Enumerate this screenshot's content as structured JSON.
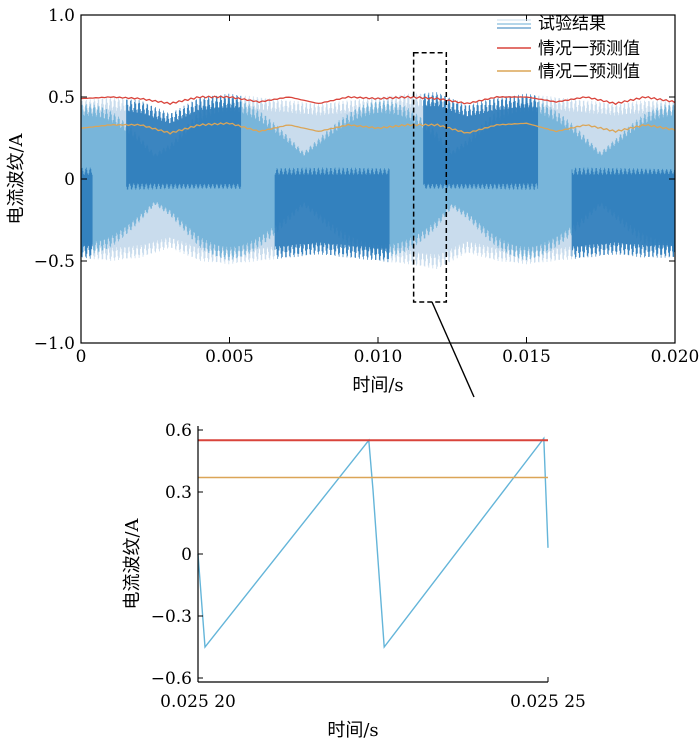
{
  "colors": {
    "experiment_light": "#c9dced",
    "experiment_mid": "#6aaed6",
    "experiment_dark": "#2b7bba",
    "case1": "#d9443b",
    "case2": "#dba557",
    "zoom_wave": "#64b5d9",
    "axis": "#000000"
  },
  "chart_data": [
    {
      "type": "line",
      "title": "",
      "xlabel": "时间/s",
      "ylabel": "电流波纹/A",
      "xlim": [
        0,
        0.02
      ],
      "ylim": [
        -1.0,
        1.0
      ],
      "xticks": [
        0,
        0.005,
        0.01,
        0.015,
        0.02
      ],
      "xtick_labels": [
        "0",
        "0.005",
        "0.010",
        "0.015",
        "0.020"
      ],
      "yticks": [
        -1.0,
        -0.5,
        0,
        0.5,
        1.0
      ],
      "ytick_labels": [
        "−1.0",
        "−0.5",
        "0",
        "0.5",
        "1.0"
      ],
      "legend_position": "top-right",
      "legend": [
        "试验结果",
        "情况一预测值",
        "情况二预测值"
      ],
      "series": [
        {
          "name": "试验结果",
          "description_values": "high-frequency triangular ripple",
          "x": [
            0,
            0.001,
            0.002,
            0.003,
            0.004,
            0.005,
            0.006,
            0.007,
            0.008,
            0.009,
            0.01,
            0.011,
            0.012,
            0.013,
            0.014,
            0.015,
            0.016,
            0.017,
            0.018,
            0.019,
            0.02
          ],
          "envelope_upper": [
            0.48,
            0.5,
            0.48,
            0.4,
            0.5,
            0.52,
            0.5,
            0.48,
            0.46,
            0.48,
            0.5,
            0.52,
            0.53,
            0.45,
            0.5,
            0.52,
            0.5,
            0.48,
            0.46,
            0.48,
            0.48
          ],
          "envelope_lower": [
            -0.48,
            -0.5,
            -0.48,
            -0.42,
            -0.5,
            -0.52,
            -0.5,
            -0.48,
            -0.46,
            -0.48,
            -0.5,
            -0.52,
            -0.55,
            -0.45,
            -0.5,
            -0.52,
            -0.5,
            -0.48,
            -0.46,
            -0.48,
            -0.48
          ]
        },
        {
          "name": "情况一预测值",
          "x": [
            0,
            0.001,
            0.002,
            0.003,
            0.004,
            0.005,
            0.006,
            0.007,
            0.008,
            0.009,
            0.01,
            0.011,
            0.012,
            0.013,
            0.014,
            0.015,
            0.016,
            0.017,
            0.018,
            0.019,
            0.02
          ],
          "values": [
            0.49,
            0.5,
            0.49,
            0.46,
            0.5,
            0.5,
            0.47,
            0.5,
            0.46,
            0.5,
            0.49,
            0.5,
            0.49,
            0.46,
            0.5,
            0.5,
            0.47,
            0.5,
            0.46,
            0.5,
            0.47
          ]
        },
        {
          "name": "情况二预测值",
          "x": [
            0,
            0.001,
            0.002,
            0.003,
            0.004,
            0.005,
            0.006,
            0.007,
            0.008,
            0.009,
            0.01,
            0.011,
            0.012,
            0.013,
            0.014,
            0.015,
            0.016,
            0.017,
            0.018,
            0.019,
            0.02
          ],
          "values": [
            0.31,
            0.33,
            0.33,
            0.28,
            0.33,
            0.34,
            0.29,
            0.33,
            0.29,
            0.33,
            0.31,
            0.33,
            0.33,
            0.28,
            0.33,
            0.34,
            0.29,
            0.33,
            0.29,
            0.33,
            0.3
          ]
        }
      ],
      "zoom_box": {
        "xlim": [
          0.0112,
          0.0123
        ],
        "ylim": [
          -0.75,
          0.77
        ]
      }
    },
    {
      "type": "line",
      "title": "",
      "xlabel": "时间/s",
      "ylabel": "电流波纹/A",
      "xlim": [
        0.0252,
        0.02525
      ],
      "ylim": [
        -0.6,
        0.6
      ],
      "xticks": [
        0.0252,
        0.02525
      ],
      "xtick_labels": [
        "0.025 20",
        "0.025 25"
      ],
      "yticks": [
        -0.6,
        -0.3,
        0,
        0.3,
        0.6
      ],
      "ytick_labels": [
        "−0.6",
        "−0.3",
        "0",
        "0.3",
        "0.6"
      ],
      "series": [
        {
          "name": "试验结果",
          "x": [
            0.0252,
            0.025201,
            0.0252244,
            0.025225,
            0.0252266,
            0.0252494,
            0.02525
          ],
          "values": [
            0.0,
            -0.45,
            0.55,
            0.31,
            -0.45,
            0.56,
            0.03
          ]
        },
        {
          "name": "情况一预测值",
          "x": [
            0.0252,
            0.02525
          ],
          "values": [
            0.55,
            0.55
          ]
        },
        {
          "name": "情况二预测值",
          "x": [
            0.0252,
            0.02525
          ],
          "values": [
            0.37,
            0.37
          ]
        }
      ]
    }
  ]
}
